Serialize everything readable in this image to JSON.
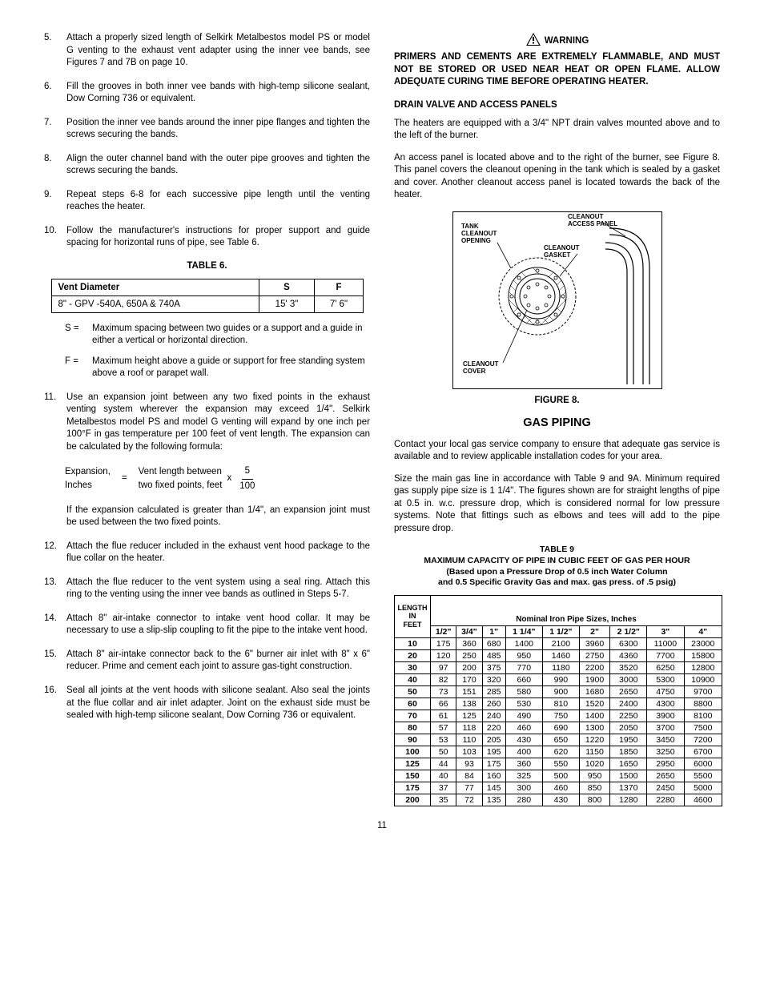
{
  "left": {
    "steps_top": [
      {
        "n": "5.",
        "t": "Attach a properly sized length of Selkirk Metalbestos model PS or model G venting to the exhaust vent adapter using the inner vee bands, see Figures 7 and 7B on page 10."
      },
      {
        "n": "6.",
        "t": "Fill the grooves in both inner vee bands with high-temp silicone sealant, Dow Corning 736 or equivalent."
      },
      {
        "n": "7.",
        "t": "Position the inner vee bands around the inner pipe flanges and tighten the screws securing the bands."
      },
      {
        "n": "8.",
        "t": "Align the outer channel band with the outer pipe grooves and tighten the screws securing the bands."
      },
      {
        "n": "9.",
        "t": "Repeat steps 6-8 for each successive pipe length until the venting reaches the heater."
      },
      {
        "n": "10.",
        "t": "Follow the manufacturer's instructions for proper support and guide spacing for horizontal runs of pipe, see Table 6."
      }
    ],
    "table6_caption": "TABLE 6.",
    "table6": {
      "headers": [
        "Vent Diameter",
        "S",
        "F"
      ],
      "row": [
        "8\" - GPV -540A, 650A & 740A",
        "15' 3\"",
        "7' 6\""
      ]
    },
    "defs": [
      {
        "lab": "S  =",
        "t": "Maximum spacing between two guides or a support and a guide in either a vertical or horizontal direction."
      },
      {
        "lab": "F  =",
        "t": "Maximum height above a guide or support for free standing system above a roof or parapet wall."
      }
    ],
    "step11": {
      "n": "11.",
      "t": "Use an expansion joint between any two fixed points in the exhaust venting system wherever the expansion may exceed 1/4\".  Selkirk Metalbestos model PS and model G venting will expand by one inch per 100°F in gas temperature per 100 feet of vent length.  The expansion can be calculated by the following formula:"
    },
    "formula": {
      "left_top": "Expansion,",
      "left_bot": "Inches",
      "eq": "=",
      "mid_top": "Vent length between",
      "mid_bot": "two fixed points, feet",
      "x": "x",
      "frac_top": "5",
      "frac_bot": "100"
    },
    "after_formula": "If the expansion calculated is greater than 1/4\", an expansion joint must be used between the two fixed points.",
    "steps_bottom": [
      {
        "n": "12.",
        "t": "Attach the flue reducer included in the exhaust vent hood package to the flue collar on the heater."
      },
      {
        "n": "13.",
        "t": "Attach the flue reducer to the vent system using a seal ring.  Attach this ring to the venting using the inner vee bands as outlined in Steps 5-7."
      },
      {
        "n": "14.",
        "t": "Attach 8\" air-intake connector to intake vent hood collar.  It may be necessary to use a slip-slip coupling to fit the pipe to the intake vent hood."
      },
      {
        "n": "15.",
        "t": "Attach 8\" air-intake connector back to the 6\" burner air inlet with 8\" x 6\" reducer.  Prime and cement each joint to assure gas-tight construction."
      },
      {
        "n": "16.",
        "t": "Seal all joints at the vent hoods with silicone sealant.  Also seal the joints at the flue collar and air inlet adapter.  Joint on the exhaust side must be sealed with high-temp silicone sealant, Dow Corning 736 or equivalent."
      }
    ]
  },
  "right": {
    "warning_head": "WARNING",
    "warning_body": "PRIMERS AND CEMENTS ARE EXTREMELY FLAMMABLE, AND MUST NOT BE STORED OR USED NEAR HEAT OR OPEN FLAME.  ALLOW ADEQUATE CURING TIME BEFORE OPERATING HEATER.",
    "drain_head": "DRAIN VALVE AND ACCESS PANELS",
    "drain_p1": "The heaters are equipped with a 3/4\" NPT drain valves mounted above and to the left of the burner.",
    "drain_p2": "An access panel is located above and to the right of the burner, see Figure 8.  This panel covers the cleanout opening in the tank which is sealed by a gasket and cover.  Another cleanout access panel is located towards the back of the heater.",
    "fig8_labels": {
      "tank": "TANK CLEANOUT OPENING",
      "access": "CLEANOUT ACCESS PANEL",
      "gasket": "CLEANOUT GASKET",
      "cover": "CLEANOUT COVER"
    },
    "fig8_caption": "FIGURE 8.",
    "gas_title": "GAS PIPING",
    "gas_p1": "Contact your local gas service company to ensure that adequate gas service is available and to review applicable installation codes for your area.",
    "gas_p2": "Size the main gas line in accordance with Table 9 and 9A.  Minimum required gas supply pipe size is 1 1/4\". The figures shown are for straight lengths of pipe at 0.5 in. w.c. pressure drop, which is considered normal for low pressure systems.  Note that fittings such as elbows and tees will add to the pipe pressure drop.",
    "t9_title1": "TABLE 9",
    "t9_title2": "MAXIMUM CAPACITY OF PIPE IN CUBIC FEET OF GAS PER HOUR",
    "t9_title3": "(Based upon a Pressure Drop of 0.5 inch Water Column",
    "t9_title4": "and 0.5 Specific Gravity Gas and max. gas press. of .5 psig)",
    "t9": {
      "corner": "LENGTH IN FEET",
      "nips": "Nominal Iron Pipe Sizes, Inches",
      "sizes": [
        "1/2\"",
        "3/4\"",
        "1\"",
        "1 1/4\"",
        "1 1/2\"",
        "2\"",
        "2 1/2\"",
        "3\"",
        "4\""
      ],
      "rows": [
        [
          "10",
          "175",
          "360",
          "680",
          "1400",
          "2100",
          "3960",
          "6300",
          "11000",
          "23000"
        ],
        [
          "20",
          "120",
          "250",
          "485",
          "950",
          "1460",
          "2750",
          "4360",
          "7700",
          "15800"
        ],
        [
          "30",
          "97",
          "200",
          "375",
          "770",
          "1180",
          "2200",
          "3520",
          "6250",
          "12800"
        ],
        [
          "40",
          "82",
          "170",
          "320",
          "660",
          "990",
          "1900",
          "3000",
          "5300",
          "10900"
        ],
        [
          "50",
          "73",
          "151",
          "285",
          "580",
          "900",
          "1680",
          "2650",
          "4750",
          "9700"
        ],
        [
          "60",
          "66",
          "138",
          "260",
          "530",
          "810",
          "1520",
          "2400",
          "4300",
          "8800"
        ],
        [
          "70",
          "61",
          "125",
          "240",
          "490",
          "750",
          "1400",
          "2250",
          "3900",
          "8100"
        ],
        [
          "80",
          "57",
          "118",
          "220",
          "460",
          "690",
          "1300",
          "2050",
          "3700",
          "7500"
        ],
        [
          "90",
          "53",
          "110",
          "205",
          "430",
          "650",
          "1220",
          "1950",
          "3450",
          "7200"
        ],
        [
          "100",
          "50",
          "103",
          "195",
          "400",
          "620",
          "1150",
          "1850",
          "3250",
          "6700"
        ],
        [
          "125",
          "44",
          "93",
          "175",
          "360",
          "550",
          "1020",
          "1650",
          "2950",
          "6000"
        ],
        [
          "150",
          "40",
          "84",
          "160",
          "325",
          "500",
          "950",
          "1500",
          "2650",
          "5500"
        ],
        [
          "175",
          "37",
          "77",
          "145",
          "300",
          "460",
          "850",
          "1370",
          "2450",
          "5000"
        ],
        [
          "200",
          "35",
          "72",
          "135",
          "280",
          "430",
          "800",
          "1280",
          "2280",
          "4600"
        ]
      ]
    }
  },
  "page_num": "11"
}
